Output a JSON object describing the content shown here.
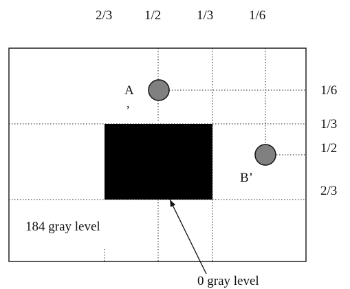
{
  "top_scale": [
    "2/3",
    "1/2",
    "1/3",
    "1/6"
  ],
  "right_scale": [
    "1/6",
    "1/3",
    "1/2",
    "2/3"
  ],
  "points": {
    "a": {
      "label": "A",
      "mark": ",",
      "color": "#808080"
    },
    "b": {
      "label": "B’",
      "color": "#808080"
    }
  },
  "regions": {
    "dark": {
      "color": "#000000"
    },
    "surround_label": "184 gray level",
    "dark_label": "0 gray level"
  }
}
